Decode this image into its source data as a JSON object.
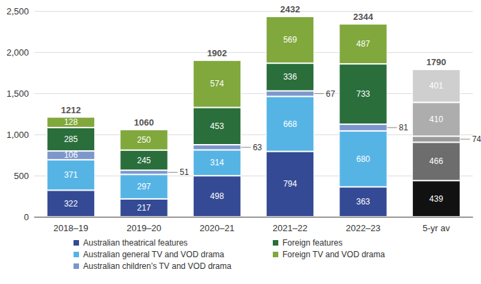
{
  "chart_data": {
    "type": "bar",
    "stacked": true,
    "data_labels": true,
    "grid": true,
    "legend": "bottom",
    "categories": [
      "2018–19",
      "2019–20",
      "2020–21",
      "2021–22",
      "2022–23",
      "5-yr av"
    ],
    "series": [
      {
        "name": "Australian theatrical features",
        "color": "#354a94",
        "colors": [
          "#354a94",
          "#354a94",
          "#354a94",
          "#354a94",
          "#354a94",
          "#111111"
        ],
        "values": [
          322,
          217,
          498,
          794,
          363,
          439
        ]
      },
      {
        "name": "Australian general TV and VOD drama",
        "color": "#56b4e5",
        "colors": [
          "#56b4e5",
          "#56b4e5",
          "#56b4e5",
          "#56b4e5",
          "#56b4e5",
          "#6d6d6d"
        ],
        "values": [
          371,
          297,
          314,
          668,
          680,
          466
        ]
      },
      {
        "name": "Australian children’s TV and VOD drama",
        "color": "#7d97cc",
        "colors": [
          "#7d97cc",
          "#7d97cc",
          "#7d97cc",
          "#7d97cc",
          "#7d97cc",
          "#9a9a9a"
        ],
        "values": [
          106,
          51,
          63,
          67,
          81,
          74
        ]
      },
      {
        "name": "Foreign features",
        "color": "#2a6e3b",
        "colors": [
          "#2a6e3b",
          "#2a6e3b",
          "#2a6e3b",
          "#2a6e3b",
          "#2a6e3b",
          "#adadad"
        ],
        "values": [
          285,
          245,
          453,
          336,
          733,
          410
        ]
      },
      {
        "name": "Foreign TV and VOD drama",
        "color": "#80a83c",
        "colors": [
          "#80a83c",
          "#80a83c",
          "#80a83c",
          "#80a83c",
          "#80a83c",
          "#cfcfcf"
        ],
        "values": [
          128,
          250,
          574,
          569,
          487,
          401
        ]
      }
    ],
    "totals": [
      1212,
      1060,
      1902,
      2432,
      2344,
      1790
    ],
    "ylim": [
      0,
      2500
    ],
    "yticks": [
      0,
      500,
      {
        "value": 1000,
        "label": "1,000"
      },
      {
        "value": 1500,
        "label": "1,500"
      },
      {
        "value": 2000,
        "label": "2,000"
      },
      {
        "value": 2500,
        "label": "2,500"
      }
    ]
  }
}
